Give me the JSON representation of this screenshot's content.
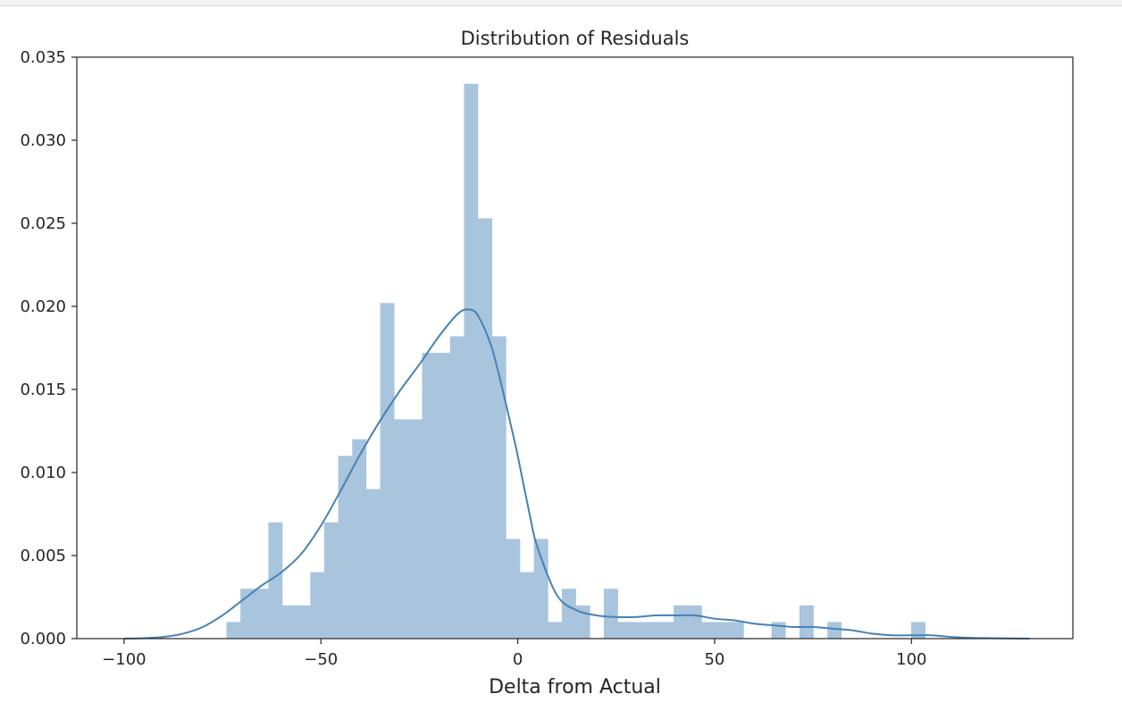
{
  "chart_data": {
    "type": "bar",
    "title": "Distribution of Residuals",
    "xlabel": "Delta from Actual",
    "ylabel": "",
    "xlim": [
      -112,
      141
    ],
    "ylim": [
      0,
      0.035
    ],
    "xticks": [
      -100,
      -50,
      0,
      50,
      100
    ],
    "xtick_labels": [
      "−100",
      "−50",
      "0",
      "50",
      "100"
    ],
    "yticks": [
      0,
      0.005,
      0.01,
      0.015,
      0.02,
      0.025,
      0.03,
      0.035
    ],
    "ytick_labels": [
      "0.000",
      "0.005",
      "0.010",
      "0.015",
      "0.020",
      "0.025",
      "0.030",
      "0.035"
    ],
    "grid": false,
    "legend": "none",
    "hist_color": "#a9c4dd",
    "kde_color": "#4682b4",
    "bin_edges": [
      -74,
      -70.45,
      -66.9,
      -63.35,
      -59.8,
      -56.25,
      -52.7,
      -49.15,
      -45.6,
      -42.05,
      -38.5,
      -34.95,
      -31.4,
      -27.85,
      -24.3,
      -20.75,
      -17.2,
      -13.65,
      -10.1,
      -6.55,
      -3,
      0.55,
      4.1,
      7.65,
      11.2,
      14.75,
      18.3,
      21.85,
      25.4,
      28.95,
      32.5,
      36.05,
      39.6,
      43.15,
      46.7,
      50.25,
      53.8,
      57.35,
      60.9,
      64.45,
      68,
      71.55,
      75.1,
      78.65,
      82.2,
      85.75,
      89.3,
      92.85,
      96.4,
      99.95,
      103.5
    ],
    "density": [
      0.001,
      0.003,
      0.003,
      0.007,
      0.002,
      0.002,
      0.004,
      0.007,
      0.011,
      0.012,
      0.009,
      0.0202,
      0.0132,
      0.0132,
      0.0172,
      0.0172,
      0.0182,
      0.0334,
      0.0253,
      0.0182,
      0.006,
      0.004,
      0.006,
      0.001,
      0.003,
      0.002,
      0,
      0.003,
      0.001,
      0.001,
      0.001,
      0.001,
      0.002,
      0.002,
      0.001,
      0.001,
      0.001,
      0,
      0,
      0.001,
      0,
      0.002,
      0,
      0.001,
      0,
      0,
      0,
      0,
      0,
      0.001
    ],
    "kde": {
      "x": [
        -100,
        -95,
        -90,
        -85,
        -80,
        -75,
        -70,
        -65,
        -60,
        -55,
        -50,
        -45,
        -40,
        -35,
        -30,
        -25,
        -20,
        -15,
        -12,
        -10,
        -7,
        -5,
        -2,
        0,
        3,
        5,
        10,
        15,
        20,
        25,
        30,
        35,
        40,
        45,
        50,
        55,
        60,
        65,
        70,
        75,
        80,
        85,
        90,
        95,
        100,
        105,
        110,
        115,
        120,
        125,
        130
      ],
      "y": [
        0,
        3e-05,
        0.0001,
        0.0003,
        0.0007,
        0.0014,
        0.0023,
        0.0032,
        0.004,
        0.0051,
        0.0068,
        0.0089,
        0.0111,
        0.0131,
        0.0149,
        0.0165,
        0.0182,
        0.0196,
        0.0198,
        0.0194,
        0.0178,
        0.0161,
        0.0131,
        0.011,
        0.0075,
        0.0055,
        0.0026,
        0.0017,
        0.0014,
        0.0013,
        0.0013,
        0.0014,
        0.0014,
        0.0014,
        0.0012,
        0.0011,
        0.0009,
        0.0008,
        0.0007,
        0.0007,
        0.0006,
        0.0005,
        0.0003,
        0.0002,
        0.0002,
        0.0002,
        0.0001,
        5e-05,
        3e-05,
        1e-05,
        0
      ]
    }
  }
}
